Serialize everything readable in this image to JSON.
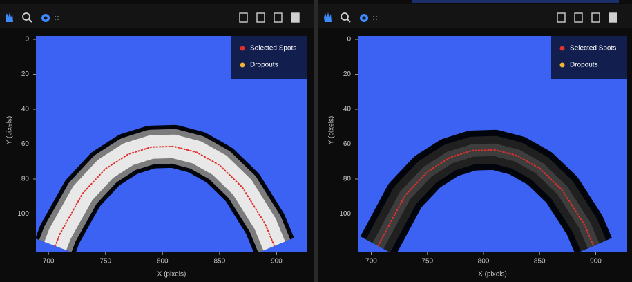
{
  "chart_data": [
    {
      "type": "scatter",
      "xlabel": "X (pixels)",
      "ylabel": "Y (pixels)",
      "xlim": [
        689,
        927
      ],
      "ylim": [
        -2,
        122
      ],
      "y_inverted": true,
      "xticks": [
        700,
        750,
        800,
        850,
        900
      ],
      "yticks": [
        0,
        20,
        40,
        60,
        80,
        100
      ],
      "legend": "upper right",
      "series": [
        {
          "name": "Selected Spots",
          "color": "#e3302b",
          "x": [
            706,
            710,
            730,
            750,
            770,
            790,
            810,
            830,
            850,
            870,
            890,
            898
          ],
          "values": [
            118.4,
            111.5,
            88.2,
            74.2,
            65.8,
            61.7,
            61.3,
            64.7,
            72.1,
            84.8,
            105.7,
            118.4
          ]
        },
        {
          "name": "Dropouts",
          "color": "#f2b331",
          "x": [],
          "values": []
        }
      ]
    },
    {
      "type": "scatter",
      "xlabel": "X (pixels)",
      "ylabel": "Y (pixels)",
      "xlim": [
        688,
        928
      ],
      "ylim": [
        -2,
        122
      ],
      "y_inverted": true,
      "xticks": [
        700,
        750,
        800,
        850,
        900
      ],
      "yticks": [
        0,
        20,
        40,
        60,
        80,
        100
      ],
      "legend": "upper right",
      "series": [
        {
          "name": "Selected Spots",
          "color": "#e3302b",
          "x": [
            706,
            730,
            750,
            770,
            790,
            810,
            830,
            850,
            870,
            890,
            898
          ],
          "values": [
            118.3,
            89.5,
            75.9,
            67.7,
            63.7,
            63.3,
            66.6,
            73.9,
            86.3,
            106.3,
            118.3
          ]
        },
        {
          "name": "Dropouts",
          "color": "#f2b331",
          "x": [],
          "values": []
        }
      ]
    }
  ]
}
